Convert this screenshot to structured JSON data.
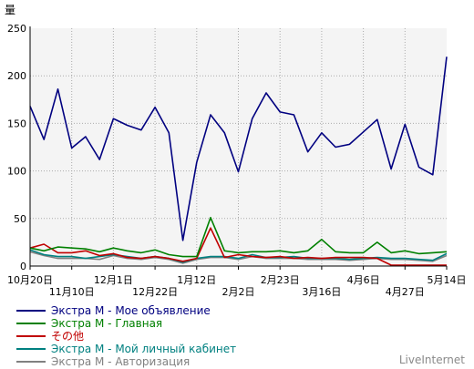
{
  "chart_data": {
    "type": "line",
    "ylabel": "量",
    "ylim": [
      0,
      250
    ],
    "yticks": [
      0,
      50,
      100,
      150,
      200,
      250
    ],
    "grid": true,
    "legend_position": "bottom",
    "x_tick_labels": [
      {
        "label": "10月20日",
        "index": 0,
        "row": 0
      },
      {
        "label": "11月10日",
        "index": 3,
        "row": 1
      },
      {
        "label": "12月1日",
        "index": 6,
        "row": 0
      },
      {
        "label": "12月22日",
        "index": 9,
        "row": 1
      },
      {
        "label": "1月12日",
        "index": 12,
        "row": 0
      },
      {
        "label": "2月2日",
        "index": 15,
        "row": 1
      },
      {
        "label": "2月23日",
        "index": 18,
        "row": 0
      },
      {
        "label": "3月16日",
        "index": 21,
        "row": 1
      },
      {
        "label": "4月6日",
        "index": 24,
        "row": 0
      },
      {
        "label": "4月27日",
        "index": 27,
        "row": 1
      },
      {
        "label": "5月14日",
        "index": 31,
        "row": 0
      }
    ],
    "series": [
      {
        "name": "Экстра М - Мое объявление",
        "color": "#000080",
        "values": [
          168,
          133,
          186,
          124,
          136,
          112,
          155,
          148,
          143,
          167,
          140,
          27,
          109,
          159,
          140,
          99,
          155,
          182,
          162,
          159,
          120,
          140,
          125,
          128,
          141,
          154,
          102,
          149,
          104,
          96,
          220
        ]
      },
      {
        "name": "Экстра М - Главная",
        "color": "#008000",
        "values": [
          19,
          16,
          20,
          19,
          18,
          15,
          19,
          16,
          14,
          17,
          12,
          10,
          10,
          51,
          16,
          14,
          15,
          15,
          16,
          14,
          16,
          28,
          15,
          14,
          14,
          25,
          14,
          16,
          13,
          14,
          15
        ]
      },
      {
        "name": "その他",
        "color": "#c00000",
        "values": [
          19,
          23,
          14,
          14,
          16,
          11,
          13,
          9,
          8,
          10,
          8,
          5,
          8,
          40,
          9,
          12,
          10,
          9,
          10,
          8,
          9,
          8,
          9,
          9,
          9,
          8,
          1,
          1,
          1,
          1,
          1
        ]
      },
      {
        "name": "Экстра М - Мой личный кабинет",
        "color": "#008080",
        "values": [
          17,
          12,
          10,
          10,
          8,
          10,
          12,
          10,
          8,
          10,
          8,
          4,
          8,
          10,
          10,
          8,
          12,
          9,
          9,
          10,
          8,
          8,
          8,
          7,
          8,
          9,
          8,
          8,
          7,
          6,
          13
        ]
      },
      {
        "name": "Экстра М - Авторизация",
        "color": "#808080",
        "values": [
          15,
          11,
          8,
          8,
          8,
          7,
          11,
          8,
          7,
          9,
          7,
          3,
          7,
          9,
          9,
          7,
          10,
          8,
          8,
          8,
          7,
          7,
          7,
          6,
          7,
          8,
          7,
          7,
          6,
          5,
          11
        ]
      }
    ]
  },
  "branding": "LiveInternet"
}
